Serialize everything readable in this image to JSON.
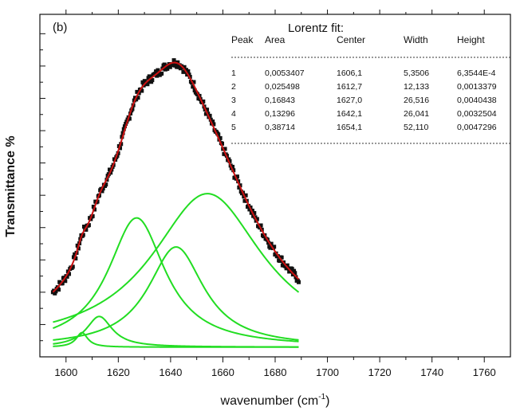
{
  "chart_data": {
    "type": "line",
    "panel_label": "(b)",
    "xlabel": "wavenumber (cm",
    "xlabel_sup": "-1",
    "xlabel_suffix": ")",
    "ylabel": "Transmittance %",
    "xlim": [
      1590,
      1770
    ],
    "ylim": [
      0,
      1.06
    ],
    "x_ticks": [
      1600,
      1620,
      1640,
      1660,
      1680,
      1700,
      1720,
      1740,
      1760
    ],
    "y_tick_labels_shown": false,
    "grid": false,
    "colors": {
      "data": "#111111",
      "fit": "#cc1111",
      "components": "#22dd22"
    },
    "baseline": 0.03,
    "fit_table": {
      "title": "Lorentz fit:",
      "headers": [
        "Peak",
        "Area",
        "Center",
        "Width",
        "Height"
      ],
      "rows": [
        [
          "1",
          "0,0053407",
          "1606,1",
          "5,3506",
          "6,3544E-4"
        ],
        [
          "2",
          "0,025498",
          "1612,7",
          "12,133",
          "0,0013379"
        ],
        [
          "3",
          "0,16843",
          "1627,0",
          "26,516",
          "0,0040438"
        ],
        [
          "4",
          "0,13296",
          "1642,1",
          "26,041",
          "0,0032504"
        ],
        [
          "5",
          "0,38714",
          "1654,1",
          "52,110",
          "0,0047296"
        ]
      ]
    },
    "peaks": [
      {
        "name": "1",
        "center": 1606.1,
        "width": 5.3506,
        "amplitude": 0.045
      },
      {
        "name": "2",
        "center": 1612.7,
        "width": 12.133,
        "amplitude": 0.095
      },
      {
        "name": "3",
        "center": 1627.0,
        "width": 26.516,
        "amplitude": 0.4
      },
      {
        "name": "4",
        "center": 1642.1,
        "width": 26.041,
        "amplitude": 0.31
      },
      {
        "name": "5",
        "center": 1654.1,
        "width": 52.11,
        "amplitude": 0.475
      }
    ],
    "x_range_data": [
      1595,
      1689
    ]
  }
}
